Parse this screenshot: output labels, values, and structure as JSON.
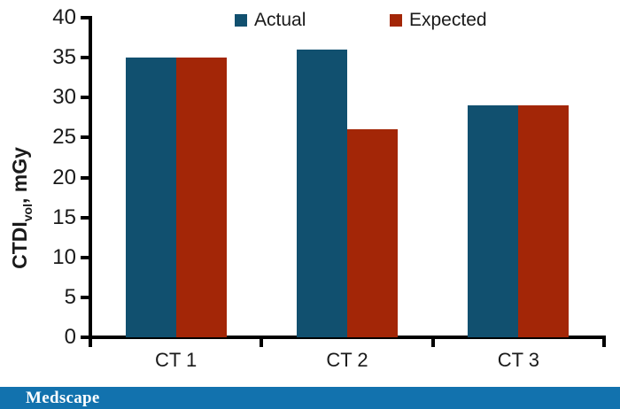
{
  "chart_data": {
    "type": "bar",
    "title": "",
    "categories": [
      "CT 1",
      "CT 2",
      "CT 3"
    ],
    "series": [
      {
        "name": "Actual",
        "color": "#11506F",
        "values": [
          35,
          36,
          29
        ]
      },
      {
        "name": "Expected",
        "color": "#A32607",
        "values": [
          35,
          26,
          29
        ]
      }
    ],
    "xlabel": "",
    "ylabel": "CTDIvol, mGy",
    "ylabel_parts": {
      "main": "CTDI",
      "sub": "vol",
      "rest": ", mGy"
    },
    "ylim": [
      0,
      40
    ],
    "yticks": [
      0,
      5,
      10,
      15,
      20,
      25,
      30,
      35,
      40
    ],
    "grid": false,
    "legend_position": "top-center"
  },
  "colors": {
    "axis": "#000000",
    "text": "#1a1a1a",
    "background": "#ffffff"
  },
  "footer": {
    "brand": "Medscape",
    "background": "#1272AE",
    "text_color": "#ffffff"
  }
}
